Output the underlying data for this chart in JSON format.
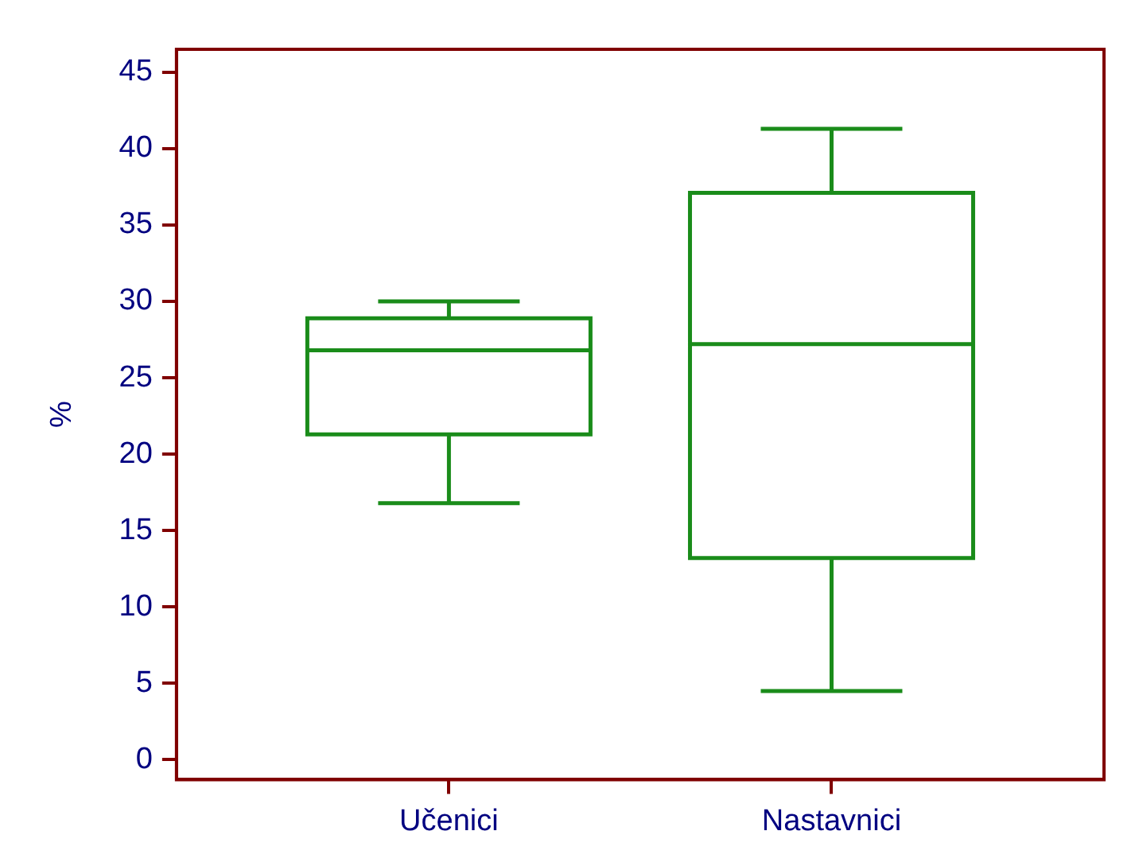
{
  "chart_data": {
    "type": "box",
    "ylabel": "%",
    "categories": [
      "Učenici",
      "Nastavnici"
    ],
    "color": "#1a8c1a",
    "boxes": [
      {
        "low": 16.8,
        "q1": 21.3,
        "median": 26.8,
        "q3": 28.9,
        "high": 30
      },
      {
        "low": 4.5,
        "q1": 13.2,
        "median": 27.2,
        "q3": 37.1,
        "high": 41.3
      }
    ],
    "ylim": [
      -1.3,
      46.5
    ],
    "yticks": [
      0,
      5,
      10,
      15,
      20,
      25,
      30,
      35,
      40,
      45
    ]
  }
}
